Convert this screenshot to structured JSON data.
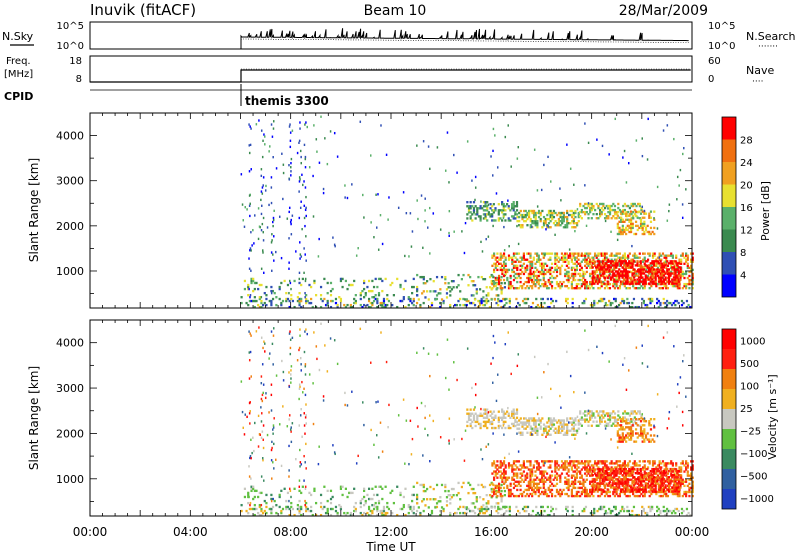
{
  "header": {
    "station": "Inuvik (fitACF)",
    "beam": "Beam 10",
    "date": "28/Mar/2009"
  },
  "nsky_panel": {
    "left_label": "N.Sky",
    "right_label": "N.Search",
    "right_dots": "·······",
    "left_ticks": [
      "10^5",
      "10^0"
    ],
    "right_ticks": [
      "10^5",
      "10^0"
    ]
  },
  "freq_panel": {
    "left_label_line1": "Freq.",
    "left_label_line2": "[MHz]",
    "left_ticks": [
      "18",
      "8"
    ],
    "right_ticks": [
      "60",
      "0"
    ],
    "right_label": "Nave",
    "right_dots": "····"
  },
  "cpid": {
    "label": "CPID",
    "program": "themis 3300"
  },
  "colors": {
    "power_scale": [
      "#0000ff",
      "#2f4fb4",
      "#3a8a4f",
      "#5ab06a",
      "#e8e030",
      "#f0a020",
      "#f07010",
      "#ff0000"
    ],
    "velocity_scale": [
      "#2040c0",
      "#3060a0",
      "#3a8a60",
      "#60c040",
      "#c8c8c0",
      "#f0b020",
      "#f08010",
      "#ff2010",
      "#ff0000"
    ]
  },
  "chart_data": [
    {
      "type": "heatmap",
      "name": "power",
      "ylabel": "Slant Range [km]",
      "xlabel": "",
      "ylim": [
        180,
        4500
      ],
      "xlim": [
        0,
        24
      ],
      "y_ticks": [
        "1000",
        "2000",
        "3000",
        "4000"
      ],
      "y_tick_values": [
        1000,
        2000,
        3000,
        4000
      ],
      "colorbar_label": "Power [dB]",
      "colorbar_ticks": [
        "4",
        "8",
        "12",
        "16",
        "20",
        "24",
        "28"
      ],
      "colorbar_range": [
        0,
        32
      ]
    },
    {
      "type": "heatmap",
      "name": "velocity",
      "ylabel": "Slant Range [km]",
      "xlabel": "Time UT",
      "ylim": [
        180,
        4500
      ],
      "xlim": [
        0,
        24
      ],
      "y_ticks": [
        "1000",
        "2000",
        "3000",
        "4000"
      ],
      "y_tick_values": [
        1000,
        2000,
        3000,
        4000
      ],
      "x_ticks": [
        "00:00",
        "04:00",
        "08:00",
        "12:00",
        "16:00",
        "20:00",
        "00:00"
      ],
      "x_tick_values": [
        0,
        4,
        8,
        12,
        16,
        20,
        24
      ],
      "colorbar_label": "Velocity [m s⁻¹]",
      "colorbar_ticks": [
        "1000",
        "500",
        "100",
        "25",
        "−25",
        "−100",
        "−500",
        "−1000"
      ]
    }
  ]
}
